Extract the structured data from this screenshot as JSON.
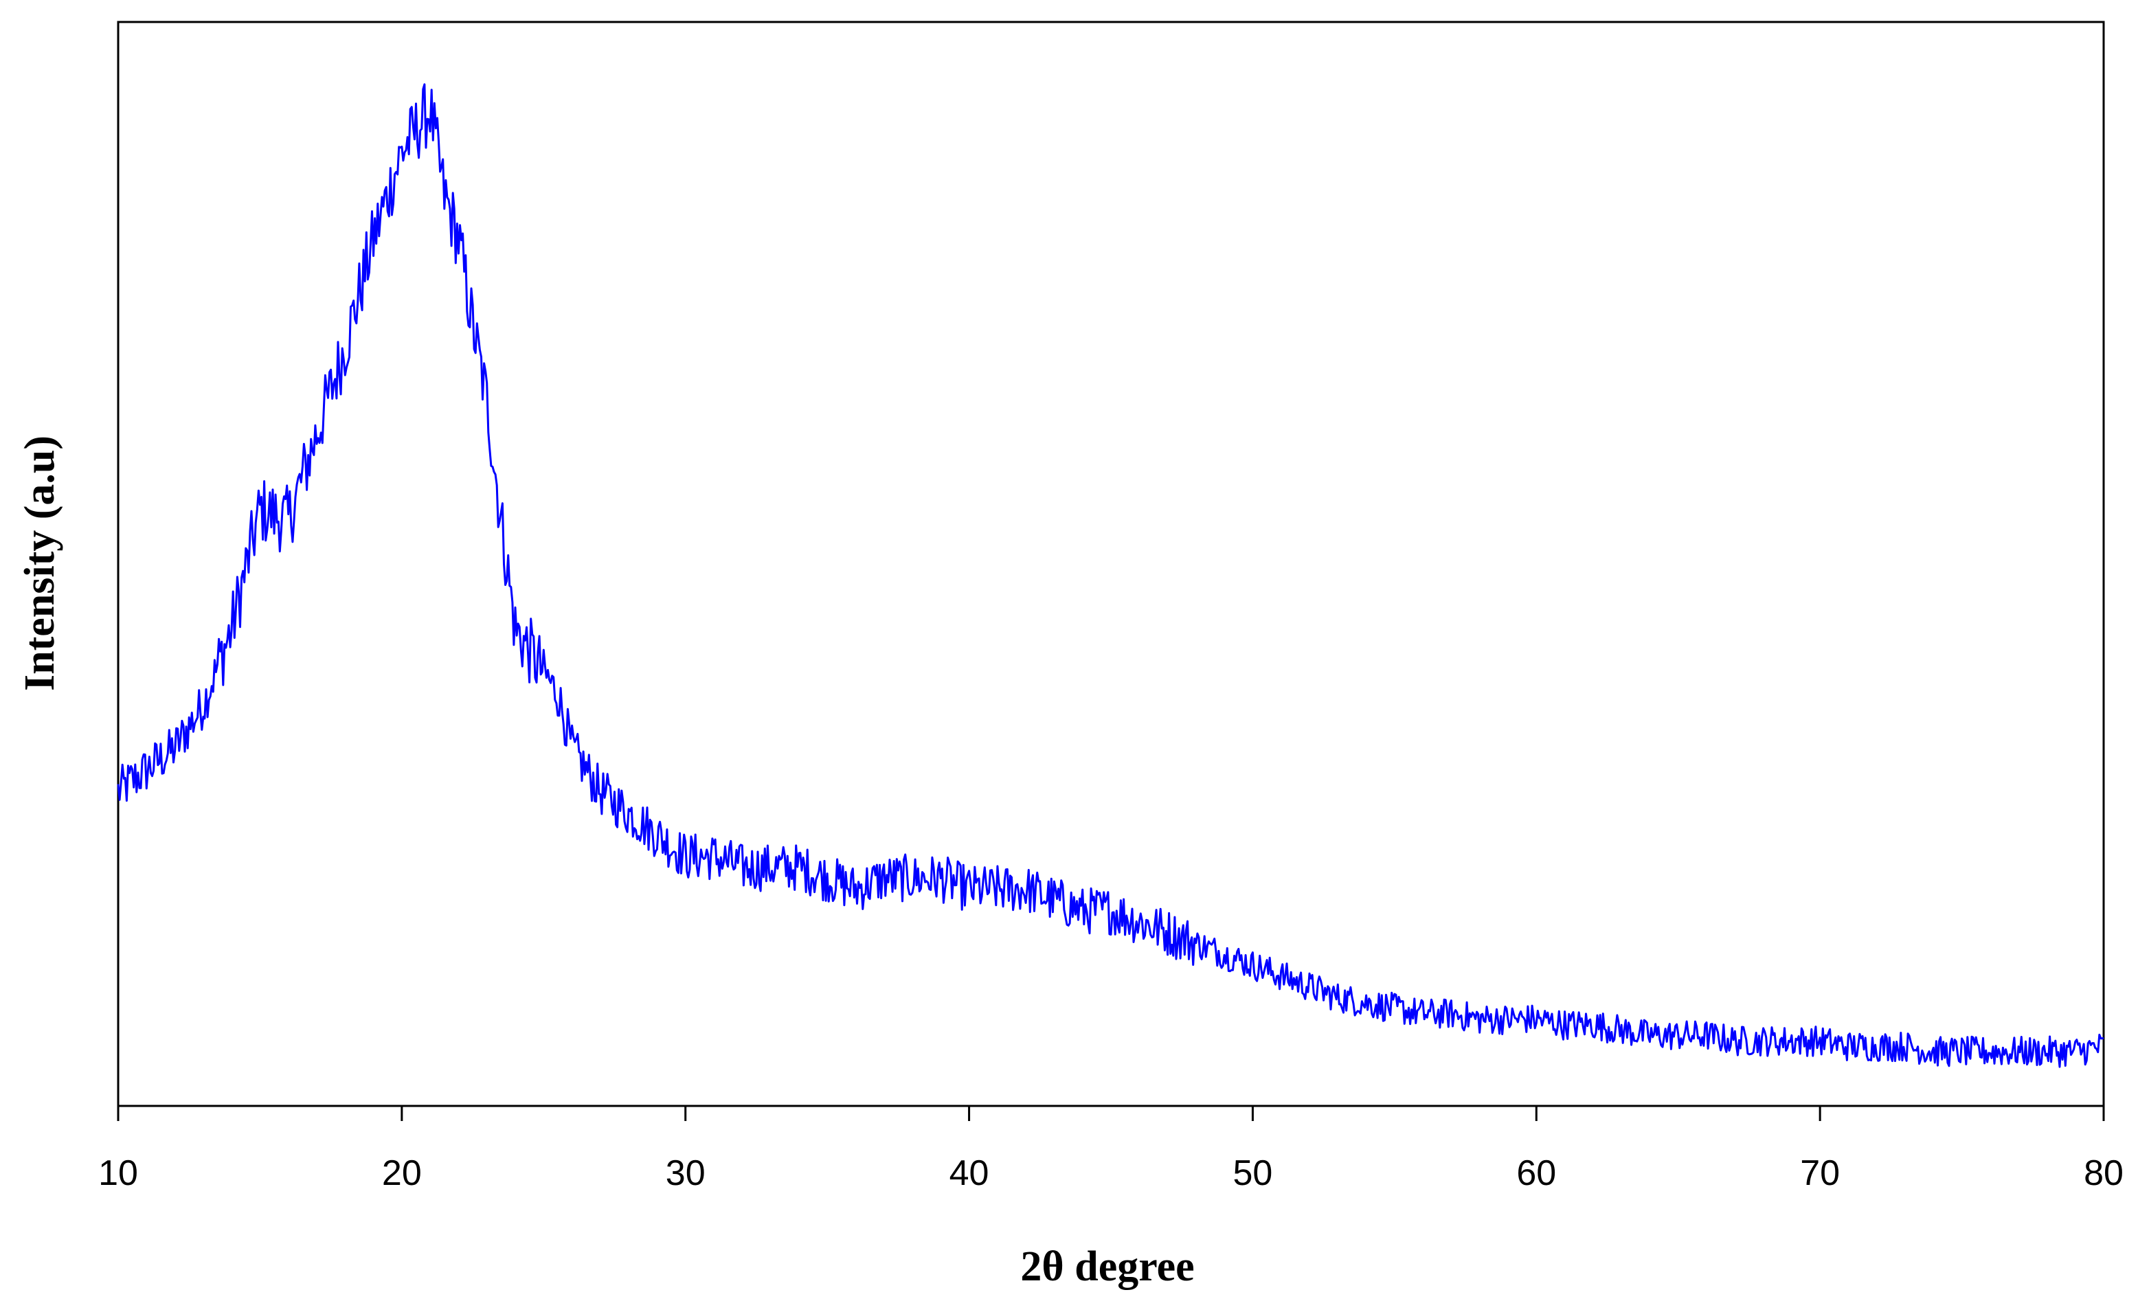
{
  "chart_data": {
    "type": "line",
    "title": "",
    "xlabel": "2θ degree",
    "ylabel": "Intensity (a.u)",
    "xlim": [
      10,
      80
    ],
    "ylim": [
      0,
      100
    ],
    "xticks": [
      "10",
      "20",
      "30",
      "40",
      "50",
      "60",
      "70",
      "80"
    ],
    "grid": false,
    "legend": "none",
    "line_color": "#0000ff",
    "series": [
      {
        "x": [
          10,
          11,
          12,
          13,
          14,
          15,
          16,
          17,
          18,
          19,
          20,
          20.5,
          21,
          21.5,
          22,
          22.5,
          23,
          23.5,
          24,
          24.5,
          25,
          25.5,
          26,
          27,
          28,
          29,
          30,
          31,
          32,
          33,
          34,
          35,
          36,
          37,
          38,
          39,
          40,
          41,
          42,
          43,
          44,
          45,
          46,
          47,
          48,
          49,
          50,
          51,
          52,
          53,
          54,
          55,
          56,
          57,
          58,
          59,
          60,
          61,
          62,
          63,
          64,
          65,
          66,
          67,
          68,
          69,
          70,
          71,
          72,
          73,
          74,
          75,
          76,
          77,
          78,
          79,
          80
        ],
        "y": [
          29,
          31,
          33,
          37,
          44,
          55,
          54,
          62,
          70,
          80,
          88,
          90,
          92,
          84,
          80,
          72,
          65,
          54,
          44,
          42,
          40,
          38,
          33,
          29,
          27,
          25,
          23,
          23,
          22,
          22,
          22,
          21,
          20,
          21,
          21,
          21,
          20,
          20,
          20,
          19,
          18,
          18,
          17,
          16,
          15,
          14,
          13,
          12,
          11,
          10,
          9.5,
          9,
          8.5,
          8.5,
          8,
          8,
          8,
          7.5,
          7.5,
          7,
          6.5,
          6.5,
          6.5,
          6,
          6,
          6,
          6,
          5.5,
          5.5,
          5.5,
          5,
          5,
          5,
          5,
          5,
          5,
          5.5
        ]
      }
    ]
  }
}
